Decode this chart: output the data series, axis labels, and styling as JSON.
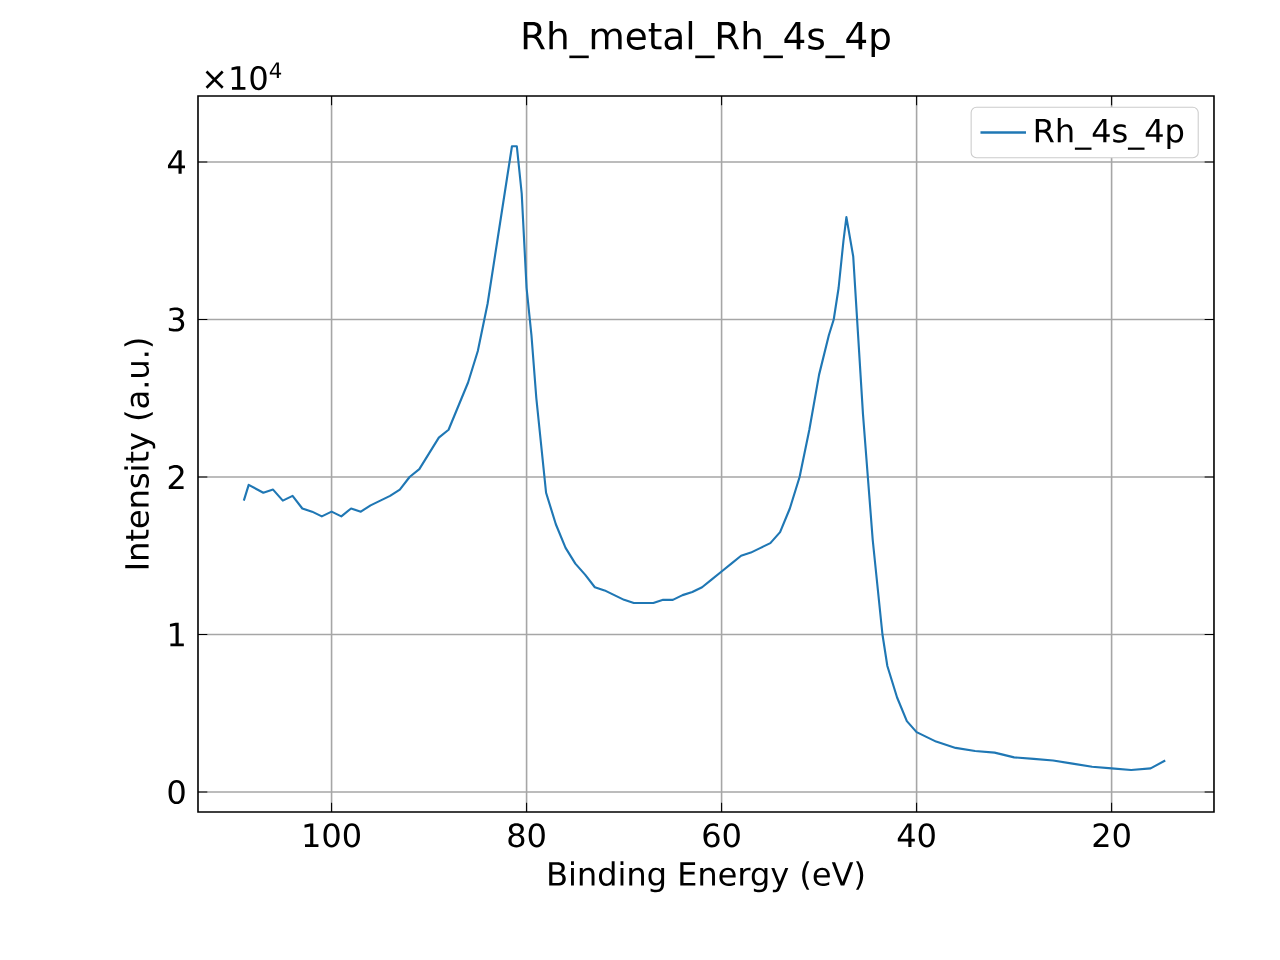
{
  "chart_data": {
    "type": "line",
    "title": "Rh_metal_Rh_4s_4p",
    "xlabel": "Binding Energy (eV)",
    "ylabel": "Intensity (a.u.)",
    "annotations": [
      "×10$^{4}$"
    ],
    "x": [
      109,
      108.5,
      107,
      106,
      105,
      104,
      103,
      102,
      101,
      100,
      99,
      98,
      97,
      96,
      95,
      94,
      93,
      92,
      91,
      90,
      89,
      88,
      87,
      86,
      85,
      84,
      83,
      82,
      81.5,
      81,
      80.5,
      80,
      79.5,
      79,
      78.5,
      78,
      77,
      76,
      75,
      74,
      73,
      72,
      71,
      70,
      69,
      68,
      67,
      66,
      65,
      64,
      63,
      62,
      61,
      60,
      59,
      58,
      57,
      56,
      55,
      54,
      53,
      52,
      51,
      50,
      49,
      48.5,
      48,
      47.5,
      47.2,
      46.5,
      46,
      45.5,
      45,
      44.5,
      44,
      43.5,
      43,
      42,
      41,
      40,
      39,
      38,
      36,
      34,
      32,
      30,
      28,
      26,
      24,
      22,
      20,
      18,
      16,
      14.5
    ],
    "series": [
      {
        "name": "Rh_4s_4p",
        "color": "#1f77b4",
        "values": [
          1.85,
          1.95,
          1.9,
          1.92,
          1.85,
          1.88,
          1.8,
          1.78,
          1.75,
          1.78,
          1.75,
          1.8,
          1.78,
          1.82,
          1.85,
          1.88,
          1.92,
          2.0,
          2.05,
          2.15,
          2.25,
          2.3,
          2.45,
          2.6,
          2.8,
          3.1,
          3.5,
          3.9,
          4.1,
          4.1,
          3.8,
          3.2,
          2.9,
          2.5,
          2.2,
          1.9,
          1.7,
          1.55,
          1.45,
          1.38,
          1.3,
          1.28,
          1.25,
          1.22,
          1.2,
          1.2,
          1.2,
          1.22,
          1.22,
          1.25,
          1.27,
          1.3,
          1.35,
          1.4,
          1.45,
          1.5,
          1.52,
          1.55,
          1.58,
          1.65,
          1.8,
          2.0,
          2.3,
          2.65,
          2.9,
          3.0,
          3.2,
          3.5,
          3.65,
          3.4,
          2.9,
          2.4,
          2.0,
          1.6,
          1.3,
          1.0,
          0.8,
          0.6,
          0.45,
          0.38,
          0.35,
          0.32,
          0.28,
          0.26,
          0.25,
          0.22,
          0.21,
          0.2,
          0.18,
          0.16,
          0.15,
          0.14,
          0.15,
          0.2
        ]
      }
    ],
    "xlim": [
      113.7,
      9.5
    ],
    "ylim": [
      -0.127,
      4.419
    ],
    "xticks": [
      100,
      80,
      60,
      40,
      20
    ],
    "yticks": [
      0,
      1,
      2,
      3,
      4
    ],
    "grid": true,
    "legend": "top right",
    "line_style": "solid",
    "marker": "none"
  }
}
